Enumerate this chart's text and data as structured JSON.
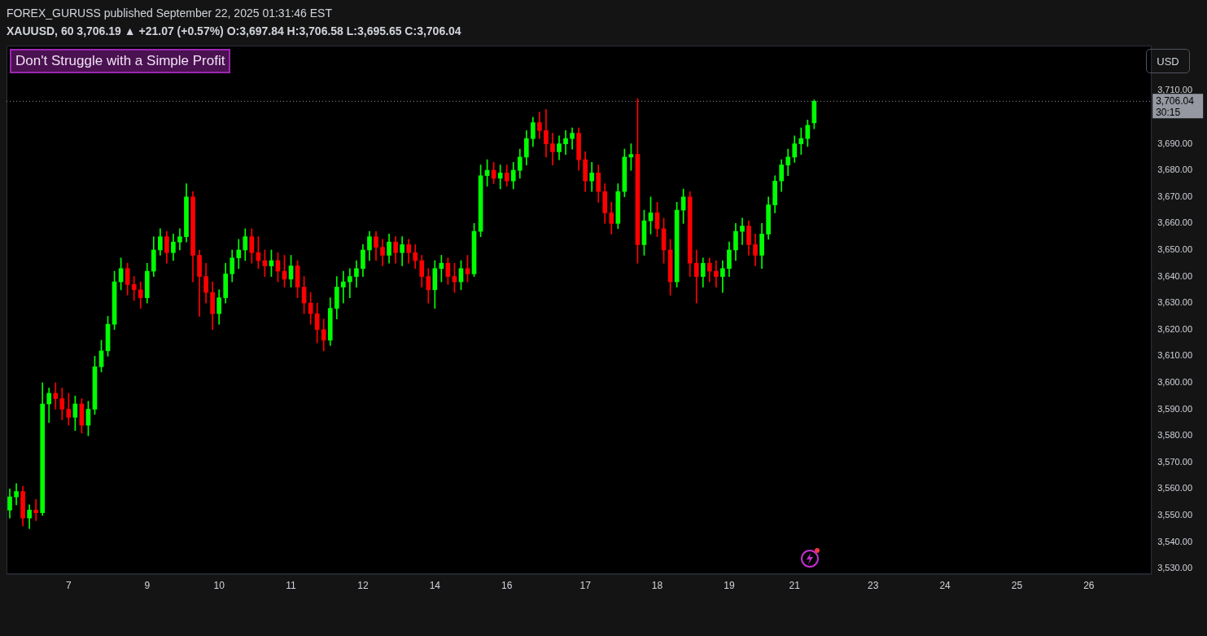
{
  "chart_data": {
    "type": "candlestick",
    "title": "FOREX_GURUSS published September 22, 2025 01:31:46 EST",
    "subtitle": "XAUUSD, 60  3,706.19 ▲ +21.07 (+0.57%) O:3,697.84 H:3,706.58 L:3,695.65 C:3,706.04",
    "annotations": [
      "Don't Struggle with a Simple Profit",
      "USD",
      "30:15"
    ],
    "categories": [
      null,
      null,
      null,
      null,
      null,
      null,
      null,
      null,
      null,
      "7",
      null,
      null,
      null,
      null,
      null,
      null,
      null,
      null,
      null,
      null,
      null,
      "9",
      null,
      null,
      null,
      null,
      null,
      null,
      null,
      null,
      null,
      null,
      "10",
      null,
      null,
      null,
      null,
      null,
      null,
      null,
      null,
      null,
      null,
      "11",
      null,
      null,
      null,
      null,
      null,
      null,
      null,
      null,
      null,
      null,
      "12",
      null,
      null,
      null,
      null,
      null,
      null,
      null,
      null,
      null,
      null,
      "14",
      null,
      null,
      null,
      null,
      null,
      null,
      null,
      null,
      null,
      null,
      "16",
      null,
      null,
      null,
      null,
      null,
      null,
      null,
      null,
      null,
      null,
      null,
      "17",
      null,
      null,
      null,
      null,
      null,
      null,
      null,
      null,
      null,
      null,
      "18",
      null,
      null,
      null,
      null,
      null,
      null,
      null,
      null,
      null,
      null,
      "19",
      null,
      null,
      null,
      null,
      null,
      null,
      null,
      null,
      null,
      "21",
      null,
      null,
      null,
      null,
      null,
      null,
      null,
      null,
      null,
      null,
      null,
      "23",
      null,
      null,
      null,
      null,
      null,
      null,
      null,
      null,
      null,
      null,
      "24",
      null,
      null,
      null,
      null,
      null,
      null,
      null,
      null,
      null,
      null,
      "25",
      null,
      null,
      null,
      null,
      null,
      null,
      null,
      null,
      null,
      null,
      "26",
      null,
      null,
      null,
      null,
      null,
      null,
      null,
      null,
      null
    ],
    "ohlc": [
      [
        3552,
        3560,
        3549,
        3557
      ],
      [
        3557,
        3562,
        3554,
        3559
      ],
      [
        3559,
        3561,
        3546,
        3549
      ],
      [
        3549,
        3554,
        3545,
        3552
      ],
      [
        3552,
        3556,
        3548,
        3551
      ],
      [
        3551,
        3600,
        3550,
        3592
      ],
      [
        3592,
        3598,
        3585,
        3596
      ],
      [
        3596,
        3600,
        3590,
        3594
      ],
      [
        3594,
        3598,
        3586,
        3590
      ],
      [
        3590,
        3596,
        3584,
        3587
      ],
      [
        3587,
        3595,
        3582,
        3592
      ],
      [
        3592,
        3594,
        3581,
        3584
      ],
      [
        3584,
        3593,
        3580,
        3590
      ],
      [
        3590,
        3610,
        3588,
        3606
      ],
      [
        3606,
        3616,
        3604,
        3612
      ],
      [
        3612,
        3625,
        3610,
        3622
      ],
      [
        3622,
        3642,
        3620,
        3638
      ],
      [
        3638,
        3647,
        3635,
        3643
      ],
      [
        3643,
        3645,
        3633,
        3637
      ],
      [
        3637,
        3640,
        3631,
        3635
      ],
      [
        3635,
        3638,
        3628,
        3632
      ],
      [
        3632,
        3645,
        3630,
        3642
      ],
      [
        3642,
        3655,
        3640,
        3650
      ],
      [
        3650,
        3658,
        3648,
        3655
      ],
      [
        3655,
        3657,
        3645,
        3649
      ],
      [
        3649,
        3656,
        3646,
        3653
      ],
      [
        3653,
        3658,
        3650,
        3655
      ],
      [
        3655,
        3675,
        3653,
        3670
      ],
      [
        3670,
        3672,
        3638,
        3648
      ],
      [
        3648,
        3650,
        3625,
        3640
      ],
      [
        3640,
        3645,
        3630,
        3634
      ],
      [
        3634,
        3638,
        3620,
        3626
      ],
      [
        3626,
        3635,
        3622,
        3632
      ],
      [
        3632,
        3645,
        3630,
        3641
      ],
      [
        3641,
        3650,
        3638,
        3647
      ],
      [
        3647,
        3654,
        3643,
        3650
      ],
      [
        3650,
        3658,
        3646,
        3655
      ],
      [
        3655,
        3658,
        3645,
        3649
      ],
      [
        3649,
        3655,
        3643,
        3646
      ],
      [
        3646,
        3650,
        3640,
        3644
      ],
      [
        3644,
        3650,
        3640,
        3646
      ],
      [
        3646,
        3649,
        3638,
        3642
      ],
      [
        3642,
        3648,
        3636,
        3639
      ],
      [
        3639,
        3648,
        3636,
        3644
      ],
      [
        3644,
        3646,
        3632,
        3636
      ],
      [
        3636,
        3640,
        3626,
        3630
      ],
      [
        3630,
        3634,
        3622,
        3626
      ],
      [
        3626,
        3630,
        3615,
        3620
      ],
      [
        3620,
        3624,
        3612,
        3616
      ],
      [
        3616,
        3632,
        3614,
        3628
      ],
      [
        3628,
        3640,
        3624,
        3636
      ],
      [
        3636,
        3642,
        3630,
        3638
      ],
      [
        3638,
        3643,
        3632,
        3640
      ],
      [
        3640,
        3646,
        3636,
        3643
      ],
      [
        3643,
        3652,
        3640,
        3650
      ],
      [
        3650,
        3657,
        3646,
        3655
      ],
      [
        3655,
        3657,
        3646,
        3651
      ],
      [
        3651,
        3654,
        3644,
        3648
      ],
      [
        3648,
        3656,
        3645,
        3653
      ],
      [
        3653,
        3655,
        3645,
        3649
      ],
      [
        3649,
        3655,
        3644,
        3652
      ],
      [
        3652,
        3654,
        3645,
        3649
      ],
      [
        3649,
        3652,
        3643,
        3646
      ],
      [
        3646,
        3648,
        3636,
        3640
      ],
      [
        3640,
        3643,
        3630,
        3635
      ],
      [
        3635,
        3646,
        3628,
        3643
      ],
      [
        3643,
        3648,
        3638,
        3645
      ],
      [
        3645,
        3647,
        3637,
        3640
      ],
      [
        3640,
        3645,
        3634,
        3638
      ],
      [
        3638,
        3646,
        3635,
        3643
      ],
      [
        3643,
        3648,
        3638,
        3641
      ],
      [
        3641,
        3660,
        3640,
        3657
      ],
      [
        3657,
        3682,
        3655,
        3678
      ],
      [
        3678,
        3684,
        3674,
        3680
      ],
      [
        3680,
        3683,
        3675,
        3677
      ],
      [
        3677,
        3682,
        3673,
        3679
      ],
      [
        3679,
        3682,
        3674,
        3676
      ],
      [
        3676,
        3683,
        3673,
        3680
      ],
      [
        3680,
        3688,
        3677,
        3685
      ],
      [
        3685,
        3695,
        3682,
        3692
      ],
      [
        3692,
        3700,
        3689,
        3698
      ],
      [
        3698,
        3702,
        3692,
        3695
      ],
      [
        3695,
        3703,
        3685,
        3690
      ],
      [
        3690,
        3694,
        3682,
        3687
      ],
      [
        3687,
        3693,
        3684,
        3690
      ],
      [
        3690,
        3695,
        3686,
        3692
      ],
      [
        3692,
        3696,
        3688,
        3694
      ],
      [
        3694,
        3696,
        3680,
        3684
      ],
      [
        3684,
        3687,
        3672,
        3676
      ],
      [
        3676,
        3683,
        3672,
        3679
      ],
      [
        3679,
        3682,
        3668,
        3672
      ],
      [
        3672,
        3675,
        3660,
        3664
      ],
      [
        3664,
        3668,
        3656,
        3660
      ],
      [
        3660,
        3675,
        3658,
        3672
      ],
      [
        3672,
        3688,
        3670,
        3685
      ],
      [
        3685,
        3690,
        3680,
        3686
      ],
      [
        3686,
        3707,
        3645,
        3652
      ],
      [
        3652,
        3665,
        3648,
        3661
      ],
      [
        3661,
        3670,
        3656,
        3664
      ],
      [
        3664,
        3668,
        3655,
        3658
      ],
      [
        3658,
        3662,
        3645,
        3650
      ],
      [
        3650,
        3654,
        3633,
        3638
      ],
      [
        3638,
        3668,
        3636,
        3665
      ],
      [
        3665,
        3673,
        3660,
        3670
      ],
      [
        3670,
        3672,
        3640,
        3645
      ],
      [
        3645,
        3650,
        3630,
        3640
      ],
      [
        3640,
        3647,
        3636,
        3645
      ],
      [
        3645,
        3647,
        3638,
        3642
      ],
      [
        3642,
        3646,
        3636,
        3640
      ],
      [
        3640,
        3646,
        3634,
        3643
      ],
      [
        3643,
        3653,
        3640,
        3650
      ],
      [
        3650,
        3660,
        3646,
        3657
      ],
      [
        3657,
        3662,
        3652,
        3659
      ],
      [
        3659,
        3661,
        3648,
        3652
      ],
      [
        3652,
        3656,
        3644,
        3648
      ],
      [
        3648,
        3660,
        3643,
        3656
      ],
      [
        3656,
        3670,
        3654,
        3667
      ],
      [
        3667,
        3678,
        3664,
        3676
      ],
      [
        3676,
        3684,
        3672,
        3682
      ],
      [
        3682,
        3688,
        3678,
        3685
      ],
      [
        3685,
        3693,
        3683,
        3690
      ],
      [
        3690,
        3696,
        3686,
        3692
      ],
      [
        3692,
        3699,
        3689,
        3697
      ],
      [
        3697.84,
        3706.58,
        3695.65,
        3706.04
      ],
      null,
      null,
      null,
      null,
      null,
      null,
      null,
      null,
      null,
      null,
      null,
      null,
      null,
      null,
      null,
      null,
      null,
      null,
      null,
      null,
      null,
      null,
      null,
      null,
      null,
      null,
      null,
      null,
      null,
      null,
      null,
      null,
      null,
      null,
      null,
      null,
      null,
      null,
      null,
      null,
      null,
      null,
      null,
      null,
      null,
      null,
      null,
      null,
      null,
      null,
      null
    ],
    "ylim": [
      3528,
      3727
    ],
    "yticks": [
      {
        "value": 3530,
        "label": "3,530.00"
      },
      {
        "value": 3540,
        "label": "3,540.00"
      },
      {
        "value": 3550,
        "label": "3,550.00"
      },
      {
        "value": 3560,
        "label": "3,560.00"
      },
      {
        "value": 3570,
        "label": "3,570.00"
      },
      {
        "value": 3580,
        "label": "3,580.00"
      },
      {
        "value": 3590,
        "label": "3,590.00"
      },
      {
        "value": 3600,
        "label": "3,600.00"
      },
      {
        "value": 3610,
        "label": "3,610.00"
      },
      {
        "value": 3620,
        "label": "3,620.00"
      },
      {
        "value": 3630,
        "label": "3,630.00"
      },
      {
        "value": 3640,
        "label": "3,640.00"
      },
      {
        "value": 3650,
        "label": "3,650.00"
      },
      {
        "value": 3660,
        "label": "3,660.00"
      },
      {
        "value": 3670,
        "label": "3,670.00"
      },
      {
        "value": 3680,
        "label": "3,680.00"
      },
      {
        "value": 3690,
        "label": "3,690.00"
      },
      {
        "value": 3710,
        "label": "3,710.00"
      }
    ],
    "ref_lines": [
      {
        "axis": "y",
        "value": 3706.04,
        "label": "3,706.04",
        "color": "#9598a1",
        "line_style": "dotted"
      }
    ],
    "grid": false,
    "legend": false
  }
}
